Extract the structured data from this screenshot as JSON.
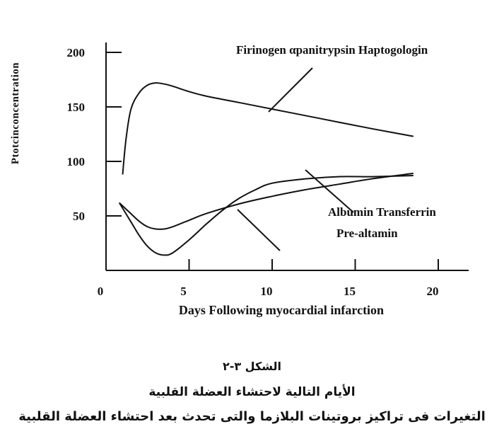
{
  "chart_data": {
    "type": "line",
    "xlabel": "Days Following myocardial infarction",
    "ylabel": "Ptotcinconcentration",
    "xlim": [
      0,
      22
    ],
    "ylim": [
      0,
      200
    ],
    "x_ticks": [
      0,
      5,
      10,
      15,
      20
    ],
    "y_ticks": [
      50,
      100,
      150,
      200
    ],
    "grid": false,
    "series": [
      {
        "x": [
          1,
          1.2,
          1.5,
          2,
          2.5,
          3,
          3.5,
          4,
          5,
          6,
          8,
          10,
          12,
          14,
          16,
          18.5
        ],
        "y": [
          88,
          120,
          148,
          163,
          170,
          172,
          171,
          169,
          164,
          160,
          154,
          148,
          142,
          136,
          130,
          123
        ]
      },
      {
        "x": [
          0.8,
          1.2,
          1.6,
          2,
          2.5,
          3,
          3.5,
          4,
          5,
          6,
          7,
          8,
          9,
          10,
          12,
          14,
          16,
          18.5
        ],
        "y": [
          62,
          52,
          42,
          32,
          22,
          16,
          14,
          16,
          28,
          42,
          55,
          66,
          74,
          80,
          84,
          86,
          86,
          87
        ]
      },
      {
        "x": [
          0.8,
          1.5,
          2,
          2.5,
          3,
          3.5,
          4,
          5,
          6,
          8,
          10,
          12,
          14,
          16,
          18.5
        ],
        "y": [
          62,
          52,
          45,
          40,
          38,
          38,
          40,
          46,
          52,
          61,
          68,
          74,
          79,
          84,
          89
        ]
      }
    ],
    "annotations": [
      "Firinogen αpanitrypsin Haptogologin",
      "Albumin Transferrin",
      "Pre-altamin"
    ]
  },
  "captions": [
    "الشكل ٣-٢",
    "الأيام التالية لاحتشاء العضلة القلبية",
    "التغيرات فى تراكيز بروتينات البلازما والتى تحدث بعد احتشاء العضلة القلبية"
  ]
}
